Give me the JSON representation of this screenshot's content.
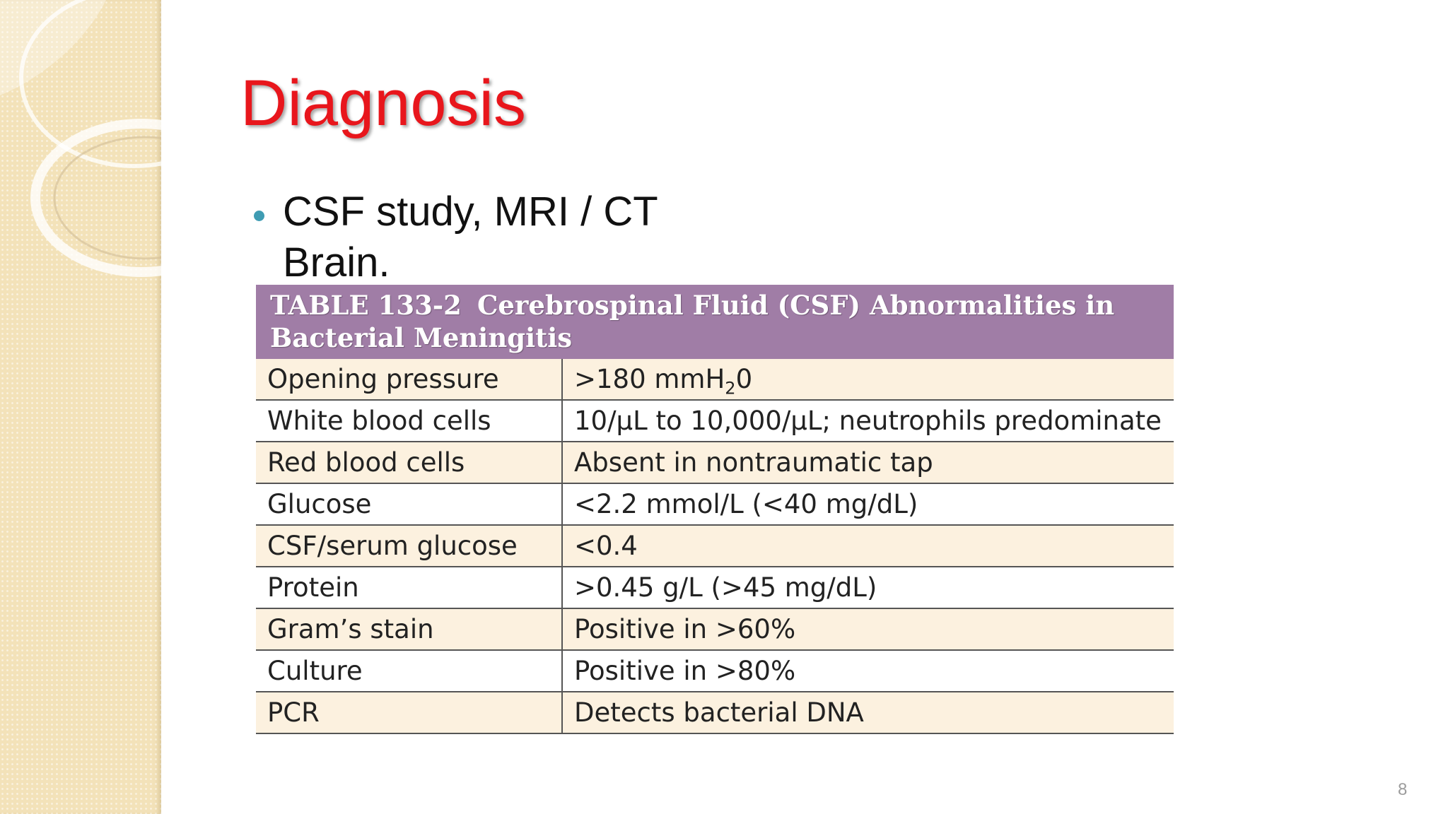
{
  "slide": {
    "title": "Diagnosis",
    "bullets": [
      {
        "line1": "CSF study,  MRI / CT",
        "line2": "Brain."
      }
    ],
    "slide_number": "8"
  },
  "table": {
    "caption_number": "TABLE 133-2",
    "caption_title": "Cerebrospinal Fluid (CSF) Abnormalities in Bacterial Meningitis",
    "rows": [
      {
        "label": "Opening pressure",
        "value_pre": ">180 mmH",
        "value_sub": "2",
        "value_post": "0"
      },
      {
        "label": "White blood cells",
        "value": "10/μL to 10,000/μL; neutrophils predominate"
      },
      {
        "label": "Red blood cells",
        "value": "Absent in nontraumatic tap"
      },
      {
        "label": "Glucose",
        "value": "<2.2 mmol/L (<40 mg/dL)"
      },
      {
        "label": "CSF/serum glucose",
        "value": "<0.4"
      },
      {
        "label": "Protein",
        "value": ">0.45 g/L (>45 mg/dL)"
      },
      {
        "label": "Gram’s stain",
        "value": "Positive in >60%"
      },
      {
        "label": "Culture",
        "value": "Positive in >80%"
      },
      {
        "label": "PCR",
        "value": "Detects bacterial DNA"
      }
    ]
  },
  "colors": {
    "title": "#e8161c",
    "bullet": "#3f9cb3",
    "table_header": "#a07da6",
    "row_tint": "#fcf1df",
    "side_panel": "#f3e2b9"
  }
}
